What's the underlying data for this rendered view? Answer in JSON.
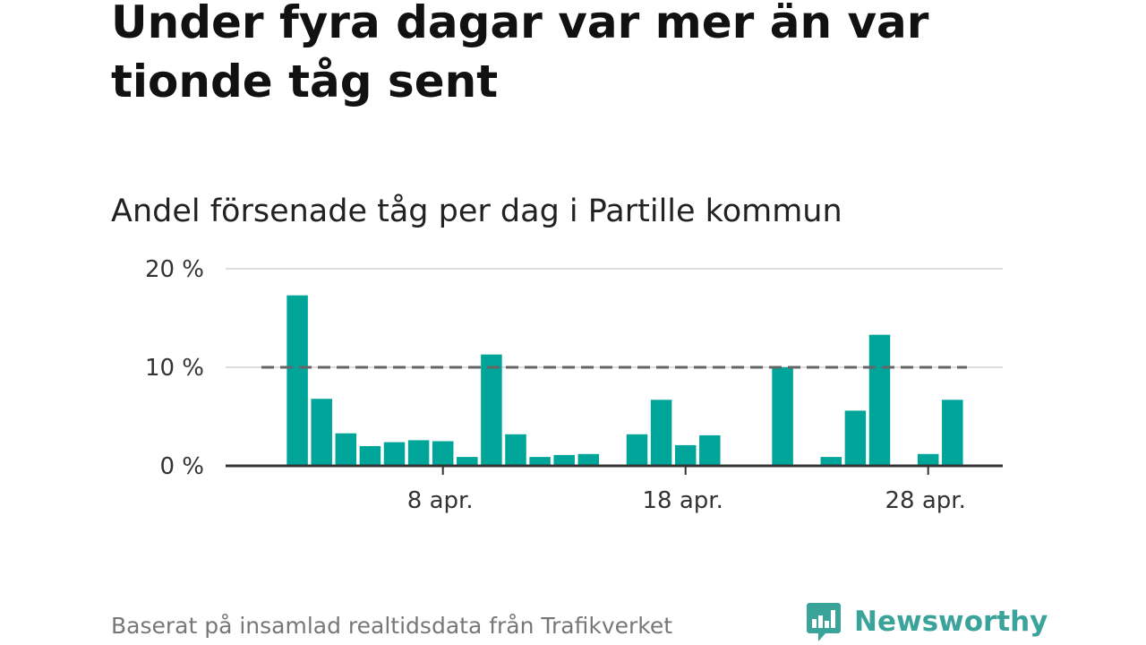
{
  "headline": "Under fyra dagar var mer än var tionde tåg sent",
  "subtitle": "Andel försenade tåg per dag i Partille kommun",
  "footer": "Baserat på insamlad realtidsdata från Trafikverket",
  "logo": {
    "name": "Newsworthy",
    "icon": "bar-chart-speech-bubble-icon",
    "color": "#3aa39a"
  },
  "colors": {
    "bar": "#00a59a",
    "grid": "#dddddd",
    "baseline": "#333333",
    "reference": "#666666"
  },
  "chart_data": {
    "type": "bar",
    "title": "",
    "xlabel": "",
    "ylabel": "",
    "ylim": [
      0,
      20
    ],
    "yticks": [
      {
        "value": 0,
        "label": "0 %"
      },
      {
        "value": 10,
        "label": "10 %"
      },
      {
        "value": 20,
        "label": "20 %"
      }
    ],
    "xticks": [
      {
        "day": 8,
        "label": "8 apr."
      },
      {
        "day": 18,
        "label": "18 apr."
      },
      {
        "day": 28,
        "label": "28 apr."
      }
    ],
    "x_range_days": [
      1,
      31
    ],
    "reference_line": {
      "value": 10,
      "style": "dashed"
    },
    "grid": true,
    "legend": "none",
    "days": [
      1,
      2,
      3,
      4,
      5,
      6,
      7,
      8,
      9,
      10,
      11,
      12,
      13,
      14,
      15,
      16,
      17,
      18,
      19,
      20,
      21,
      22,
      23,
      24,
      25,
      26,
      27,
      28,
      29,
      30
    ],
    "values": [
      null,
      17.3,
      6.8,
      3.3,
      2.0,
      2.4,
      2.6,
      2.5,
      0.9,
      11.3,
      3.2,
      0.9,
      1.1,
      1.2,
      null,
      3.2,
      6.7,
      2.1,
      3.1,
      null,
      null,
      10.0,
      null,
      0.9,
      5.6,
      13.3,
      null,
      1.2,
      6.7,
      null
    ]
  }
}
